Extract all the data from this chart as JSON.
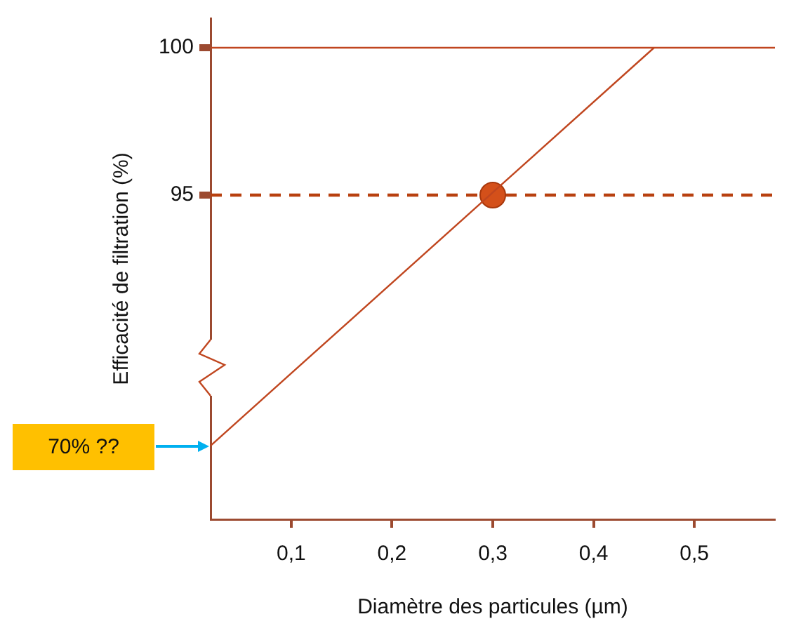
{
  "chart_data": {
    "type": "line",
    "xlabel": "Diamètre des particules (µm)",
    "ylabel": "Efficacité de filtration (%)",
    "xlim": [
      0.02,
      0.58
    ],
    "xticks": [
      {
        "value": 0.1,
        "label": "0,1"
      },
      {
        "value": 0.2,
        "label": "0,2"
      },
      {
        "value": 0.3,
        "label": "0,3"
      },
      {
        "value": 0.4,
        "label": "0,4"
      },
      {
        "value": 0.5,
        "label": "0,5"
      }
    ],
    "ylim": [
      84,
      101
    ],
    "yticks": [
      95,
      100
    ],
    "series": [
      {
        "color": "#c0461f",
        "x": [
          0.02,
          0.46
        ],
        "values": [
          86.5,
          100
        ],
        "marker": "none",
        "line_style": "solid"
      },
      {
        "type": "scatter",
        "color": "#d4501a",
        "x": [
          0.3
        ],
        "values": [
          95
        ],
        "marker": "circle"
      }
    ],
    "ref_lines": [
      {
        "axis": "y",
        "value": 100,
        "color": "#c0461f",
        "line_style": "solid"
      },
      {
        "axis": "y",
        "value": 95,
        "color": "#b8400f",
        "line_style": "dashed"
      }
    ],
    "annotations": [
      "70% ??"
    ],
    "grid": false,
    "legend": false
  }
}
